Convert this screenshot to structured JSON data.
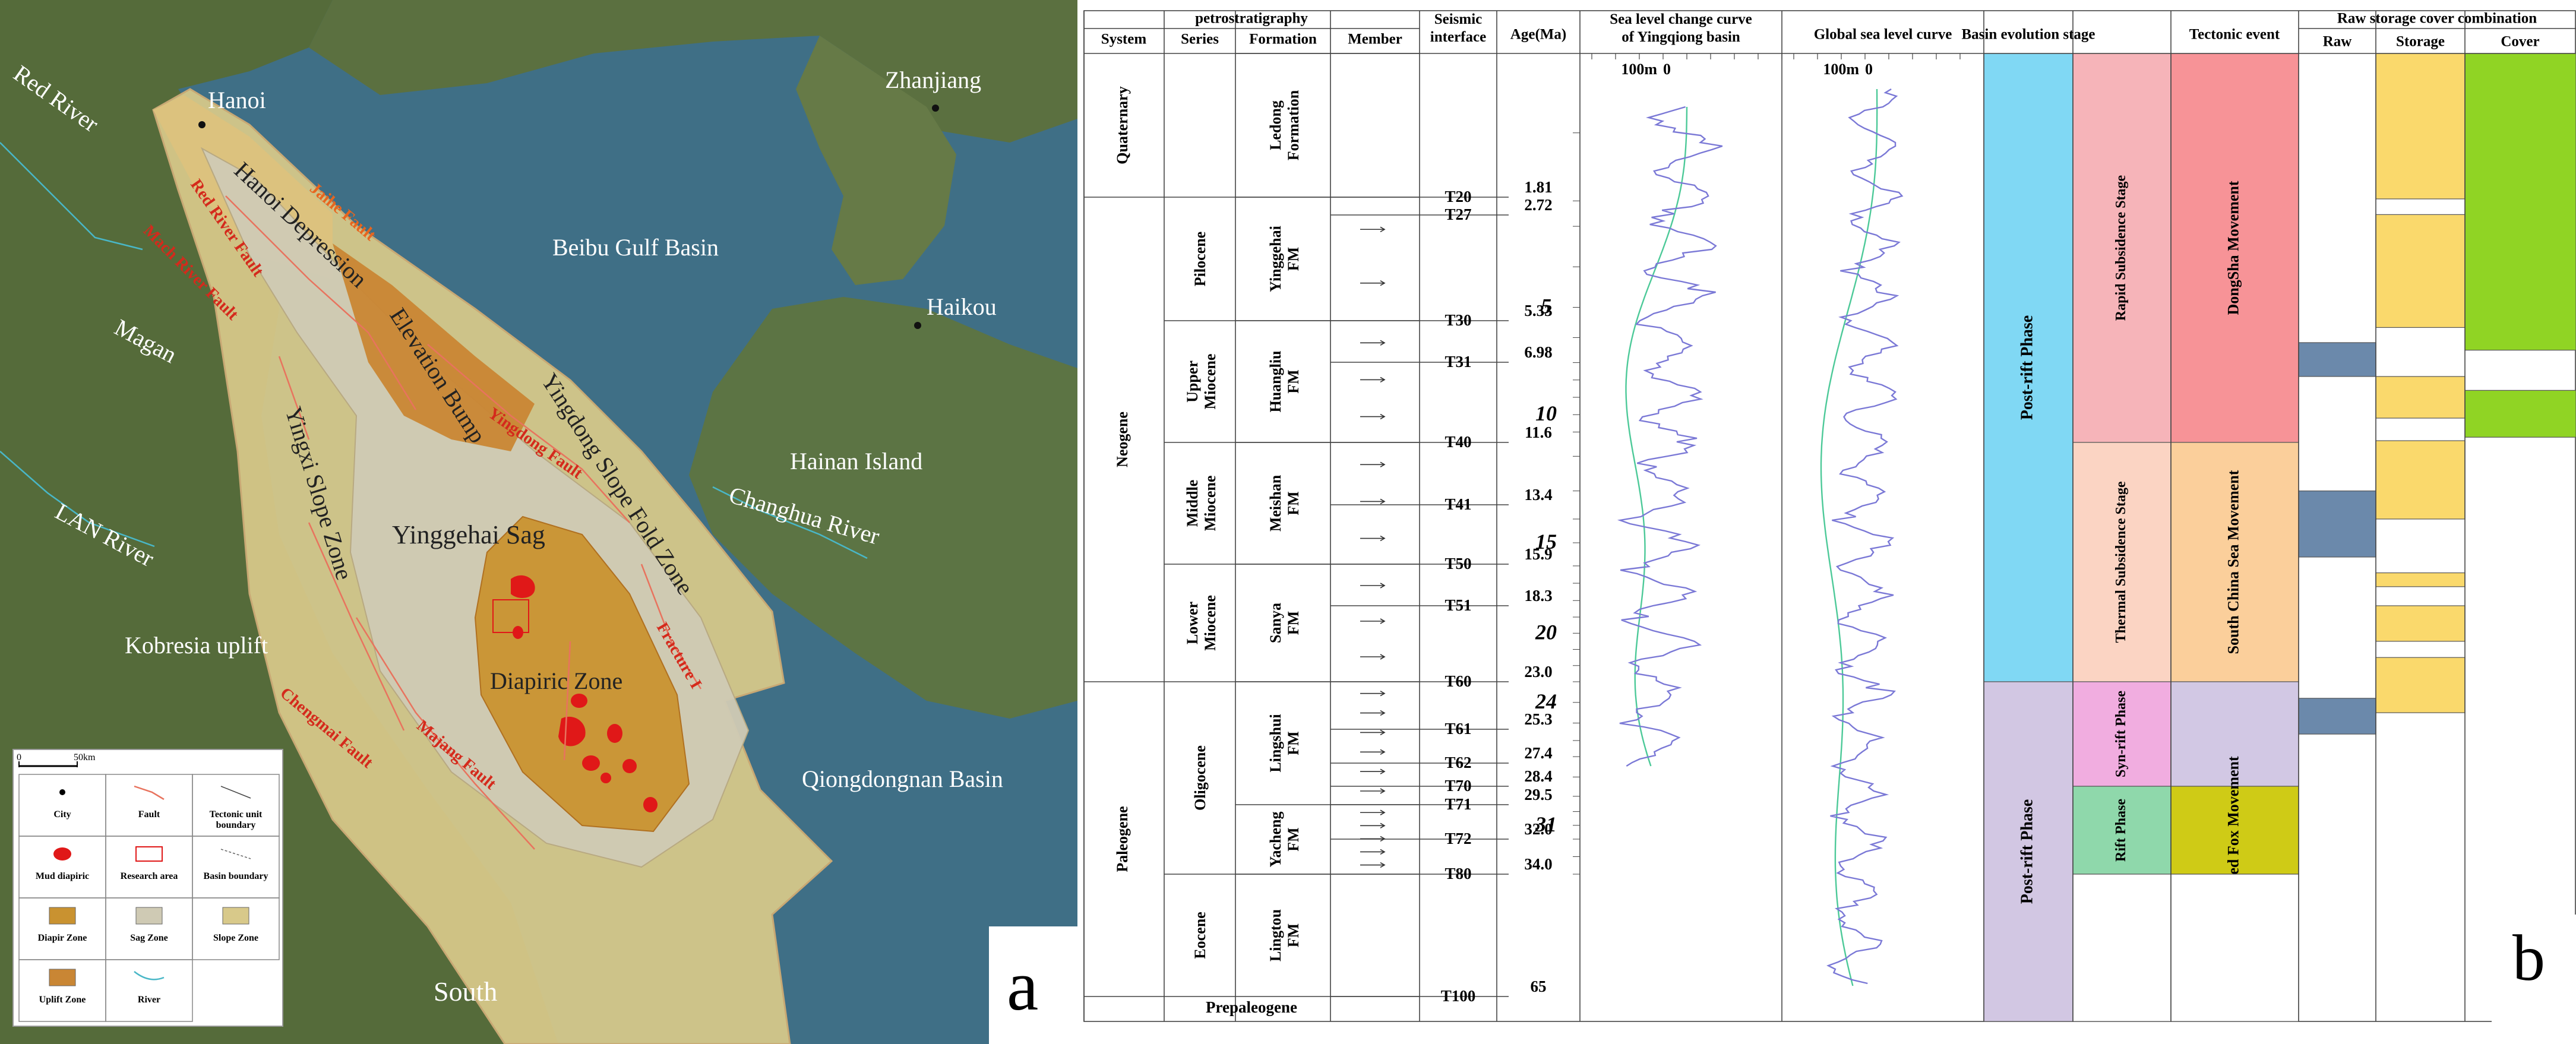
{
  "panel_a": {
    "label": "a",
    "places": {
      "hanoi": "Hanoi",
      "zhanjiang": "Zhanjiang",
      "haikou": "Haikou",
      "beibu": "Beibu Gulf Basin",
      "hainan": "Hainan Island",
      "changhua": "Changhua River",
      "red_river": "Red River",
      "magan": "Magan",
      "lan_river": "LAN River",
      "kobresia": "Kobresia uplift",
      "south": "South",
      "qiongdongnan": "Qiongdongnan Basin",
      "hanoi_depression": "Hanoi  Depression",
      "elevation_bump": "Elevation Bump",
      "yingdong_slope": "Yingdong Slope Fold Zone",
      "yinggehai_sag": "Yinggehai Sag",
      "yingxi_slope": "Yingxi Slope Zone",
      "diapiric_zone": "Diapiric Zone"
    },
    "faults": {
      "jaihe": "Jaihe Fault",
      "red_river_fault": "Red River Fault",
      "mach_fault": "Mach River Fault",
      "yingdong_fault": "Yingdong Fault",
      "fracture": "Fracture I",
      "majiang_fault": "Majang Fault",
      "chengmai_fault": "Chengmai Fault"
    },
    "scale": {
      "zero": "0",
      "distance": "50km"
    },
    "legend": [
      {
        "symbol": "city",
        "label": "City"
      },
      {
        "symbol": "fault",
        "label": "Fault"
      },
      {
        "symbol": "tectonic-boundary",
        "label": "Tectonic unit boundary"
      },
      {
        "symbol": "mud-diapir",
        "label": "Mud diapiric"
      },
      {
        "symbol": "research-area",
        "label": "Research area"
      },
      {
        "symbol": "basin-boundary",
        "label": "Basin boundary"
      },
      {
        "symbol": "diapir-zone",
        "label": "Diapir Zone"
      },
      {
        "symbol": "sag-zone",
        "label": "Sag Zone"
      },
      {
        "symbol": "slope-zone",
        "label": "Slope Zone"
      },
      {
        "symbol": "uplift-zone",
        "label": "Uplift Zone"
      },
      {
        "symbol": "river",
        "label": "River"
      }
    ],
    "colors": {
      "sea": "#3f6f86",
      "land": "#556b3a",
      "slope": "#d8c98a",
      "sag": "#cfcab4",
      "uplift": "#c98634",
      "diapir": "#c99230",
      "mud": "#e01818",
      "fault": "#e8735e"
    }
  },
  "panel_b": {
    "label": "b",
    "headers": {
      "petro": "petrostratigraphy",
      "system": "System",
      "series": "Series",
      "formation": "Formation",
      "member": "Member",
      "seismic": "Seismic interface",
      "age": "Age(Ma)",
      "sl_local": "Sea level change curve of Yingqiong basin",
      "sl_global": "Global sea level curve",
      "basin": "Basin evolution stage",
      "tectonic": "Tectonic event",
      "raw_group": "Raw storage cover combination",
      "raw": "Raw",
      "storage": "Storage",
      "cover": "Cover"
    },
    "curve_scale": {
      "left": "100m",
      "right": "0"
    },
    "systems": [
      {
        "label": "Quaternary",
        "top": 0,
        "bottom": 1.81
      },
      {
        "label": "Neogene",
        "top": 1.81,
        "bottom": 23.0
      },
      {
        "label": "Paleogene",
        "top": 23.0,
        "bottom": 65
      }
    ],
    "series": [
      {
        "label": "Pilocene",
        "top": 1.81,
        "bottom": 5.33
      },
      {
        "label": "Upper Miocene",
        "top": 5.33,
        "bottom": 11.6
      },
      {
        "label": "Middle Miocene",
        "top": 11.6,
        "bottom": 15.9
      },
      {
        "label": "Lower Miocene",
        "top": 15.9,
        "bottom": 23.0
      },
      {
        "label": "Oligocene",
        "top": 23.0,
        "bottom": 34.0
      },
      {
        "label": "Eocene",
        "top": 34.0,
        "bottom": 65
      }
    ],
    "formations": [
      {
        "label": "Ledong Formation",
        "top": 0,
        "bottom": 1.81
      },
      {
        "label": "Yinggehai FM",
        "top": 1.81,
        "bottom": 5.33
      },
      {
        "label": "Huangliu FM",
        "top": 5.33,
        "bottom": 11.6
      },
      {
        "label": "Meishan FM",
        "top": 11.6,
        "bottom": 15.9
      },
      {
        "label": "Sanya FM",
        "top": 15.9,
        "bottom": 23.0
      },
      {
        "label": "Lingshui FM",
        "top": 23.0,
        "bottom": 29.5
      },
      {
        "label": "Yacheng FM",
        "top": 29.5,
        "bottom": 34.0
      },
      {
        "label": "Lingtou FM",
        "top": 34.0,
        "bottom": 65
      }
    ],
    "prepaleogene": "Prepaleogene",
    "interfaces": [
      {
        "label": "T20",
        "age": "1.81"
      },
      {
        "label": "T27",
        "age": "2.72"
      },
      {
        "label": "T30",
        "age": "5.33"
      },
      {
        "label": "T31",
        "age": "6.98"
      },
      {
        "label": "T40",
        "age": "11.6"
      },
      {
        "label": "T41",
        "age": "13.4"
      },
      {
        "label": "T50",
        "age": "15.9"
      },
      {
        "label": "T51",
        "age": "18.3"
      },
      {
        "label": "T60",
        "age": "23.0"
      },
      {
        "label": "T61",
        "age": "25.3"
      },
      {
        "label": "T62",
        "age": "27.4"
      },
      {
        "label": "T70",
        "age": "28.4"
      },
      {
        "label": "T71",
        "age": "29.5"
      },
      {
        "label": "T72",
        "age": "32.0"
      },
      {
        "label": "T80",
        "age": "34.0"
      },
      {
        "label": "T100",
        "age": "65"
      }
    ],
    "age_marks": [
      "5",
      "10",
      "15",
      "20",
      "24",
      "31"
    ],
    "basin_stages": [
      {
        "label": "Post-rift Phase",
        "top": 0,
        "bottom": 23.0,
        "color": "#80d8f4"
      },
      {
        "label": "Post-rift Phase",
        "top": 23.0,
        "bottom": 65,
        "color": "#d2c7e3"
      }
    ],
    "sub_stages": [
      {
        "label": "Rapid Subsidence Stage",
        "top": 0,
        "bottom": 11.6,
        "color": "#f6b4b9"
      },
      {
        "label": "Thermal Subsidence Stage",
        "top": 11.6,
        "bottom": 23.0,
        "color": "#fbd4c3"
      },
      {
        "label": "Syn-rift Phase",
        "top": 23.0,
        "bottom": 28.4,
        "color": "#f1ade0"
      },
      {
        "label": "Rift Phase",
        "top": 28.4,
        "bottom": 34.0,
        "color": "#8fd8ab"
      },
      {
        "label": "",
        "top": 34.0,
        "bottom": 65,
        "color": "#ffffff"
      }
    ],
    "tectonic_events": [
      {
        "label": "DongSha Movement",
        "top": 0,
        "bottom": 11.6,
        "color": "#f79397"
      },
      {
        "label": "South China Sea Movement",
        "top": 11.6,
        "bottom": 23.0,
        "color": "#fbcf9b"
      },
      {
        "label": "",
        "top": 23.0,
        "bottom": 28.4,
        "color": "#d2c8e4"
      },
      {
        "label": "Sacred Fox Movement",
        "top": 28.4,
        "bottom": 34.0,
        "color": "#cfcb16"
      },
      {
        "label": "",
        "top": 34.0,
        "bottom": 65,
        "color": "#ffffff"
      }
    ],
    "raw_blocks": [
      {
        "top": 6.2,
        "bottom": 7.8
      },
      {
        "top": 13.0,
        "bottom": 15.6
      },
      {
        "top": 23.8,
        "bottom": 25.6
      }
    ],
    "storage_blocks": [
      {
        "top": 0,
        "bottom": 1.9
      },
      {
        "top": 2.7,
        "bottom": 5.6
      },
      {
        "top": 7.8,
        "bottom": 10.2
      },
      {
        "top": 11.5,
        "bottom": 14.0
      },
      {
        "top": 16.4,
        "bottom": 17.2
      },
      {
        "top": 18.3,
        "bottom": 20.5
      },
      {
        "top": 21.5,
        "bottom": 24.5
      }
    ],
    "cover_blocks": [
      {
        "top": 0,
        "bottom": 6.5
      },
      {
        "top": 8.6,
        "bottom": 11.3
      }
    ],
    "colors": {
      "raw": "#6b89ab",
      "storage": "#fad96c",
      "cover": "#90d424",
      "curve_green": "#4cc998",
      "curve_purple": "#7a78d6"
    }
  }
}
